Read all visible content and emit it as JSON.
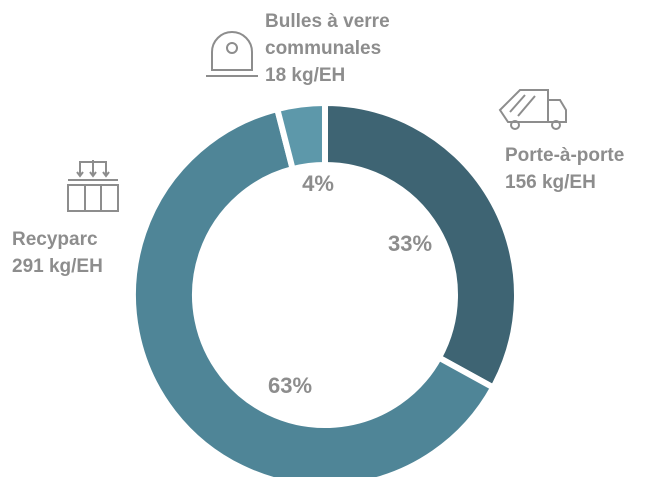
{
  "chart_data": {
    "type": "pie",
    "donut": true,
    "categories": [
      "Porte-à-porte",
      "Recyparc",
      "Bulles à verre communales"
    ],
    "amounts": [
      "156 kg/EH",
      "291 kg/EH",
      "18 kg/EH"
    ],
    "values": [
      33,
      63,
      4
    ],
    "value_labels": [
      "33%",
      "63%",
      "4%"
    ],
    "colors": [
      "#3e6473",
      "#4f8597",
      "#5d98aa"
    ]
  }
}
